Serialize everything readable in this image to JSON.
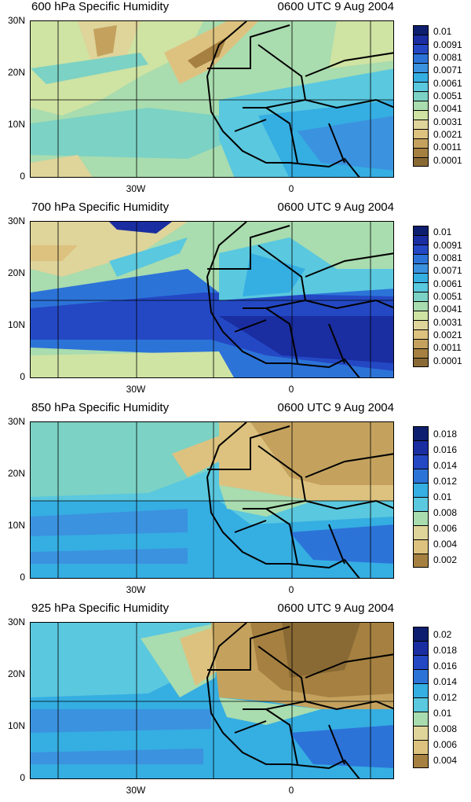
{
  "colors": [
    "#8a6a34",
    "#a58040",
    "#c4a25e",
    "#ddc27f",
    "#dfd49a",
    "#cfe3a3",
    "#a9dcae",
    "#7cd2c4",
    "#5ac8df",
    "#35aee2",
    "#3b92df",
    "#2c73d8",
    "#2448c4",
    "#1a2da1",
    "#0d1e6e"
  ],
  "panels": [
    {
      "title": "600 hPa Specific Humidity",
      "time": "0600 UTC 9 Aug 2004",
      "ylabels": [
        "30N",
        "20N",
        "10N",
        "0"
      ],
      "xlabels": [
        "30W",
        "0"
      ],
      "levels": [
        "0.01",
        "0.0091",
        "0.0081",
        "0.0071",
        "0.0061",
        "0.0051",
        "0.0041",
        "0.0031",
        "0.0021",
        "0.0011",
        "0.0001"
      ],
      "colorbar_colors": [
        "#0d1e6e",
        "#1a2da1",
        "#2448c4",
        "#2c73d8",
        "#3b92df",
        "#35aee2",
        "#5ac8df",
        "#7cd2c4",
        "#a9dcae",
        "#cfe3a3",
        "#dfd49a",
        "#ddc27f",
        "#c4a25e",
        "#a58040",
        "#8a6a34"
      ]
    },
    {
      "title": "700 hPa Specific Humidity",
      "time": "0600 UTC 9 Aug 2004",
      "ylabels": [
        "30N",
        "20N",
        "10N",
        "0"
      ],
      "xlabels": [
        "30W",
        "0"
      ],
      "levels": [
        "0.01",
        "0.0091",
        "0.0081",
        "0.0071",
        "0.0061",
        "0.0051",
        "0.0041",
        "0.0031",
        "0.0021",
        "0.0011",
        "0.0001"
      ],
      "colorbar_colors": [
        "#0d1e6e",
        "#1a2da1",
        "#2448c4",
        "#2c73d8",
        "#3b92df",
        "#35aee2",
        "#5ac8df",
        "#7cd2c4",
        "#a9dcae",
        "#cfe3a3",
        "#dfd49a",
        "#ddc27f",
        "#c4a25e",
        "#a58040",
        "#8a6a34"
      ]
    },
    {
      "title": "850 hPa Specific Humidity",
      "time": "0600 UTC 9 Aug 2004",
      "ylabels": [
        "30N",
        "20N",
        "10N",
        "0"
      ],
      "xlabels": [
        "30W",
        "0"
      ],
      "levels": [
        "0.018",
        "0.016",
        "0.014",
        "0.012",
        "0.01",
        "0.008",
        "0.006",
        "0.004",
        "0.002"
      ],
      "colorbar_colors": [
        "#0d1e6e",
        "#1a2da1",
        "#2448c4",
        "#2c73d8",
        "#35aee2",
        "#5ac8df",
        "#a9dcae",
        "#dfd49a",
        "#ddc27f",
        "#a58040"
      ]
    },
    {
      "title": "925 hPa Specific Humidity",
      "time": "0600 UTC 9 Aug 2004",
      "ylabels": [
        "30N",
        "20N",
        "10N",
        "0"
      ],
      "xlabels": [
        "30W",
        "0"
      ],
      "levels": [
        "0.02",
        "0.018",
        "0.016",
        "0.014",
        "0.012",
        "0.01",
        "0.008",
        "0.006",
        "0.004"
      ],
      "colorbar_colors": [
        "#0d1e6e",
        "#1a2da1",
        "#2448c4",
        "#2c73d8",
        "#35aee2",
        "#5ac8df",
        "#a9dcae",
        "#dfd49a",
        "#ddc27f",
        "#a58040"
      ]
    }
  ]
}
